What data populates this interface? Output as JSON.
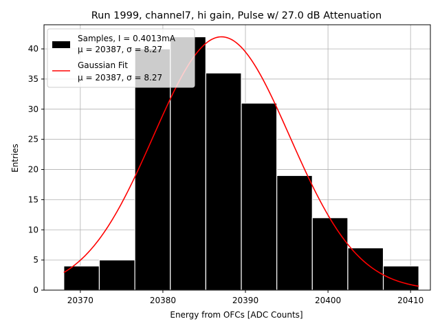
{
  "chart_data": {
    "type": "bar",
    "title": "Run 1999, channel7, hi gain, Pulse w/ 27.0 dB Attenuation",
    "xlabel": "Energy from OFCs [ADC Counts]",
    "ylabel": "Entries",
    "xlim": [
      20365.6,
      20412.4
    ],
    "ylim": [
      0,
      44
    ],
    "xticks": [
      20370,
      20380,
      20390,
      20400,
      20410
    ],
    "yticks": [
      0,
      5,
      10,
      15,
      20,
      25,
      30,
      35,
      40
    ],
    "grid": true,
    "bins": [
      {
        "start": 20368.0,
        "end": 20372.3,
        "count": 4
      },
      {
        "start": 20372.3,
        "end": 20376.6,
        "count": 5
      },
      {
        "start": 20376.6,
        "end": 20380.9,
        "count": 40
      },
      {
        "start": 20380.9,
        "end": 20385.2,
        "count": 42
      },
      {
        "start": 20385.2,
        "end": 20389.5,
        "count": 36
      },
      {
        "start": 20389.5,
        "end": 20393.8,
        "count": 31
      },
      {
        "start": 20393.8,
        "end": 20398.1,
        "count": 19
      },
      {
        "start": 20398.1,
        "end": 20402.4,
        "count": 12
      },
      {
        "start": 20402.4,
        "end": 20406.7,
        "count": 7
      },
      {
        "start": 20406.7,
        "end": 20411.0,
        "count": 4
      }
    ],
    "fit": {
      "type": "gaussian",
      "amplitude": 42.0,
      "mu": 20387.1,
      "sigma": 8.27,
      "x_range": [
        20368.0,
        20411.0
      ]
    },
    "legend": {
      "position": "top-left",
      "entries": [
        {
          "name": "Samples, I = 0.4013mA",
          "stats": "μ = 20387, σ = 8.27",
          "color": "#000000",
          "kind": "patch"
        },
        {
          "name": "Gaussian Fit",
          "stats": "μ = 20387, σ = 8.27",
          "color": "#ff0000",
          "kind": "line"
        }
      ]
    },
    "colors": {
      "bars": "#000000",
      "bar_edge": "#ffffff",
      "fit": "#ff0000",
      "grid": "#b0b0b0"
    }
  }
}
